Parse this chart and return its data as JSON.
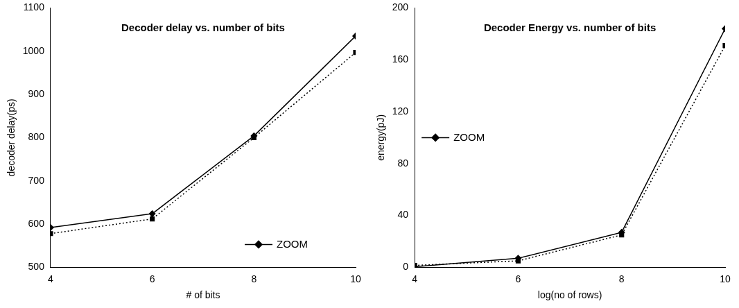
{
  "chart_data": [
    {
      "type": "line",
      "title": "Decoder delay vs. number of bits",
      "xlabel": "# of bits",
      "ylabel": "decoder delay(ps)",
      "x": [
        4,
        6,
        8,
        10
      ],
      "xlim": [
        4,
        10
      ],
      "xticks": [
        4,
        6,
        8,
        10
      ],
      "ylim": [
        500,
        1100
      ],
      "yticks": [
        500,
        600,
        700,
        800,
        900,
        1000,
        1100
      ],
      "grid": false,
      "legend": "bottom right",
      "series": [
        {
          "name": "ZOOM",
          "color": "#000000",
          "values": [
            592,
            624,
            804,
            1035
          ],
          "marker": "diamond",
          "line_style": "solid"
        },
        {
          "color": "#000000",
          "values": [
            578,
            612,
            800,
            997
          ],
          "marker": "square",
          "line_style": "dotted"
        }
      ]
    },
    {
      "type": "line",
      "title": "Decoder Energy vs. number of bits",
      "xlabel": "log(no of rows)",
      "ylabel": "energy(pJ)",
      "x": [
        4,
        6,
        8,
        10
      ],
      "xlim": [
        4,
        10
      ],
      "xticks": [
        4,
        6,
        8,
        10
      ],
      "ylim": [
        0,
        200
      ],
      "yticks": [
        0,
        40,
        80,
        120,
        160,
        200
      ],
      "grid": false,
      "legend": "left",
      "series": [
        {
          "name": "ZOOM",
          "color": "#000000",
          "values": [
            0.5,
            7,
            27,
            184
          ],
          "marker": "diamond",
          "line_style": "solid"
        },
        {
          "color": "#000000",
          "values": [
            1.5,
            5,
            25,
            171
          ],
          "marker": "square",
          "line_style": "dotted"
        }
      ]
    }
  ]
}
